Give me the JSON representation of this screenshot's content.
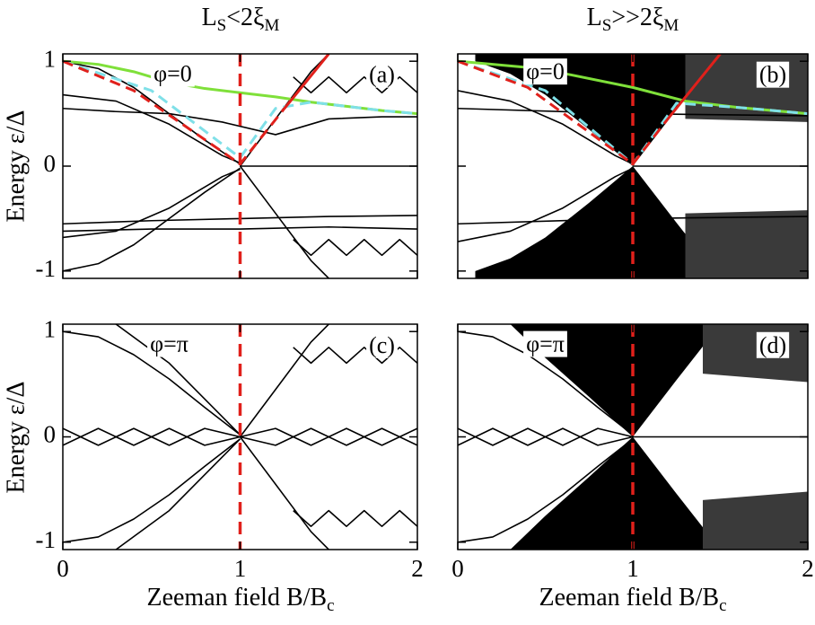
{
  "figure": {
    "column_titles": [
      [
        {
          "text": "L"
        },
        {
          "text": "S",
          "sub": true
        },
        {
          "text": "<2ξ"
        },
        {
          "text": "M",
          "sub": true
        }
      ],
      [
        {
          "text": "L"
        },
        {
          "text": "S",
          "sub": true
        },
        {
          "text": ">>2ξ"
        },
        {
          "text": "M",
          "sub": true
        }
      ]
    ],
    "ylabel": "Energy ε/Δ",
    "xlabel": [
      {
        "text": "Zeeman field B/B"
      },
      {
        "text": "c",
        "sub": true
      }
    ]
  },
  "chart_data": [
    {
      "type": "line",
      "xlim": [
        0,
        2
      ],
      "ylim": [
        -1.07,
        1.07
      ],
      "xticks": [
        0,
        1,
        2
      ],
      "yticks": [
        -1,
        0,
        1
      ],
      "xtick_labels": false,
      "ytick_labels": true,
      "annotations": [
        {
          "text": "φ=0",
          "x": 0.62,
          "y": 0.86,
          "boxed": true
        },
        {
          "text": "(a)",
          "x": 1.8,
          "y": 0.85,
          "boxed": true
        }
      ],
      "vline": {
        "x": 1,
        "color": "#e0201b"
      },
      "areas": [],
      "series": [
        {
          "color": "#000",
          "x": [
            0,
            0.2,
            0.4,
            0.6,
            0.8,
            1
          ],
          "values": [
            1.0,
            0.93,
            0.75,
            0.5,
            0.25,
            0.02
          ]
        },
        {
          "color": "#000",
          "x": [
            0,
            0.2,
            0.4,
            0.6,
            0.8,
            1
          ],
          "values": [
            -1.0,
            -0.93,
            -0.75,
            -0.5,
            -0.25,
            -0.02
          ]
        },
        {
          "color": "#000",
          "x": [
            0,
            0.3,
            0.6,
            0.9,
            1
          ],
          "values": [
            0.68,
            0.62,
            0.4,
            0.1,
            0.03
          ]
        },
        {
          "color": "#000",
          "x": [
            0,
            0.3,
            0.6,
            0.9,
            1
          ],
          "values": [
            -0.68,
            -0.62,
            -0.4,
            -0.1,
            -0.03
          ]
        },
        {
          "color": "#000",
          "x": [
            0,
            0.3,
            0.6,
            0.9,
            1.2,
            1.5,
            1.8,
            2
          ],
          "values": [
            0.55,
            0.52,
            0.5,
            0.42,
            0.3,
            0.45,
            0.47,
            0.47
          ]
        },
        {
          "color": "#000",
          "x": [
            0,
            0.5,
            1,
            1.5,
            2
          ],
          "values": [
            -0.55,
            -0.52,
            -0.5,
            -0.48,
            -0.47
          ]
        },
        {
          "color": "#000",
          "x": [
            0,
            0.5,
            1,
            1.5,
            2
          ],
          "values": [
            -0.62,
            -0.6,
            -0.6,
            -0.58,
            -0.6
          ]
        },
        {
          "color": "#000",
          "x": [
            1,
            1.2,
            1.4,
            1.5
          ],
          "values": [
            0,
            0.45,
            0.9,
            1.07
          ]
        },
        {
          "color": "#000",
          "x": [
            1,
            1.2,
            1.4,
            1.5
          ],
          "values": [
            0,
            -0.45,
            -0.9,
            -1.07
          ]
        },
        {
          "color": "#000",
          "x": [
            1.3,
            1.4,
            1.5,
            1.6,
            1.7,
            1.8,
            1.9,
            2
          ],
          "values": [
            0.85,
            0.7,
            0.85,
            0.7,
            0.85,
            0.7,
            0.85,
            0.7
          ]
        },
        {
          "color": "#000",
          "x": [
            1.3,
            1.4,
            1.5,
            1.6,
            1.7,
            1.8,
            1.9,
            2
          ],
          "values": [
            -0.7,
            -0.85,
            -0.7,
            -0.85,
            -0.7,
            -0.85,
            -0.7,
            -0.85
          ]
        },
        {
          "color": "#000",
          "x": [
            1,
            2
          ],
          "values": [
            0,
            0
          ]
        },
        {
          "color": "#7fe03a",
          "width": 3,
          "x": [
            0,
            0.2,
            0.4,
            0.6,
            0.8,
            1,
            1.2,
            1.4,
            1.6,
            1.8,
            2
          ],
          "values": [
            1,
            0.97,
            0.9,
            0.8,
            0.74,
            0.7,
            0.66,
            0.61,
            0.57,
            0.53,
            0.5
          ]
        },
        {
          "color": "#7fe0e8",
          "width": 3,
          "dash": true,
          "x": [
            0,
            0.5,
            1,
            1.2,
            1.4,
            1.6,
            1.8,
            2
          ],
          "values": [
            1,
            0.72,
            0.08,
            0.55,
            0.61,
            0.57,
            0.53,
            0.5
          ]
        },
        {
          "color": "#e0201b",
          "width": 3,
          "dash": true,
          "x": [
            0,
            0.4,
            1,
            1.25
          ],
          "values": [
            1,
            0.72,
            0.02,
            0.55
          ]
        },
        {
          "color": "#e0201b",
          "width": 3,
          "x": [
            1.25,
            1.5
          ],
          "values": [
            0.55,
            1.07
          ]
        }
      ]
    },
    {
      "type": "line",
      "xlim": [
        0,
        2
      ],
      "ylim": [
        -1.07,
        1.07
      ],
      "xticks": [
        0,
        1,
        2
      ],
      "yticks": [
        -1,
        0,
        1
      ],
      "xtick_labels": false,
      "ytick_labels": false,
      "annotations": [
        {
          "text": "φ=0",
          "x": 0.5,
          "y": 0.88,
          "boxed": true
        },
        {
          "text": "(b)",
          "x": 1.8,
          "y": 0.85,
          "boxed": true
        }
      ],
      "vline": {
        "x": 1,
        "color": "#e0201b"
      },
      "areas": [
        {
          "color": "#000",
          "x": [
            0.1,
            0.3,
            0.5,
            0.75,
            1,
            1.25,
            1.5
          ],
          "lower": [
            1.0,
            0.88,
            0.68,
            0.35,
            0,
            0.54,
            1.07
          ],
          "upper": [
            1.07,
            1.07,
            1.07,
            1.07,
            1.07,
            1.07,
            1.07
          ]
        },
        {
          "color": "#000",
          "x": [
            0.1,
            0.3,
            0.5,
            0.75,
            1,
            1.25,
            1.5
          ],
          "lower": [
            -1.07,
            -1.07,
            -1.07,
            -1.07,
            -1.07,
            -1.07,
            -1.07
          ],
          "upper": [
            -1.0,
            -0.88,
            -0.68,
            -0.35,
            0,
            -0.54,
            -1.07
          ]
        },
        {
          "color": "#3a3a3a",
          "x": [
            1.3,
            2
          ],
          "lower": [
            0.45,
            0.42
          ],
          "upper": [
            1.07,
            1.07
          ]
        },
        {
          "color": "#3a3a3a",
          "x": [
            1.3,
            2
          ],
          "lower": [
            -1.07,
            -1.07
          ],
          "upper": [
            -0.45,
            -0.42
          ]
        }
      ],
      "series": [
        {
          "color": "#000",
          "x": [
            0,
            0.3,
            0.6,
            0.9,
            1
          ],
          "values": [
            0.72,
            0.62,
            0.4,
            0.1,
            0.02
          ]
        },
        {
          "color": "#000",
          "x": [
            0,
            0.3,
            0.6,
            0.9,
            1
          ],
          "values": [
            -0.72,
            -0.62,
            -0.4,
            -0.1,
            -0.02
          ]
        },
        {
          "color": "#000",
          "x": [
            0,
            1,
            2
          ],
          "values": [
            0.55,
            0.5,
            0.48
          ]
        },
        {
          "color": "#000",
          "x": [
            0,
            1,
            2
          ],
          "values": [
            -0.55,
            -0.5,
            -0.48
          ]
        },
        {
          "color": "#000",
          "x": [
            1,
            2
          ],
          "values": [
            0,
            0
          ]
        },
        {
          "color": "#7fe03a",
          "width": 3,
          "x": [
            0,
            0.47,
            1,
            1.3,
            1.6,
            2
          ],
          "values": [
            1,
            0.93,
            0.75,
            0.62,
            0.56,
            0.5
          ]
        },
        {
          "color": "#7fe0e8",
          "width": 3,
          "dash": true,
          "x": [
            0,
            0.5,
            1,
            1.25,
            1.6,
            2
          ],
          "values": [
            1,
            0.72,
            0.02,
            0.6,
            0.56,
            0.5
          ]
        },
        {
          "color": "#e0201b",
          "width": 3,
          "dash": true,
          "x": [
            0,
            0.4,
            1,
            1.2
          ],
          "values": [
            1,
            0.75,
            0.02,
            0.45
          ]
        },
        {
          "color": "#e0201b",
          "width": 3,
          "x": [
            1.2,
            1.5
          ],
          "values": [
            0.45,
            1.07
          ]
        }
      ]
    },
    {
      "type": "line",
      "xlim": [
        0,
        2
      ],
      "ylim": [
        -1.07,
        1.07
      ],
      "xticks": [
        0,
        1,
        2
      ],
      "yticks": [
        -1,
        0,
        1
      ],
      "xtick_labels": true,
      "ytick_labels": true,
      "annotations": [
        {
          "text": "φ=π",
          "x": 0.6,
          "y": 0.86,
          "boxed": true
        },
        {
          "text": "(c)",
          "x": 1.8,
          "y": 0.85,
          "boxed": true
        }
      ],
      "vline": {
        "x": 1,
        "color": "#e0201b"
      },
      "areas": [],
      "series": [
        {
          "color": "#000",
          "x": [
            0,
            0.2,
            0.4,
            0.6,
            0.8,
            1
          ],
          "values": [
            1.0,
            0.95,
            0.78,
            0.55,
            0.28,
            0.02
          ]
        },
        {
          "color": "#000",
          "x": [
            0,
            0.2,
            0.4,
            0.6,
            0.8,
            1
          ],
          "values": [
            -1.0,
            -0.95,
            -0.78,
            -0.55,
            -0.28,
            -0.02
          ]
        },
        {
          "color": "#000",
          "x": [
            0,
            0.2,
            0.4,
            0.6,
            0.8,
            1
          ],
          "values": [
            0.08,
            -0.08,
            0.08,
            -0.08,
            0.08,
            0
          ]
        },
        {
          "color": "#000",
          "x": [
            0,
            0.2,
            0.4,
            0.6,
            0.8,
            1
          ],
          "values": [
            -0.08,
            0.08,
            -0.08,
            0.08,
            -0.08,
            0
          ]
        },
        {
          "color": "#000",
          "x": [
            1,
            1.2,
            1.4,
            1.6,
            1.8,
            2
          ],
          "values": [
            0,
            0.08,
            -0.08,
            0.08,
            -0.08,
            0.08
          ]
        },
        {
          "color": "#000",
          "x": [
            1,
            1.2,
            1.4,
            1.6,
            1.8,
            2
          ],
          "values": [
            0,
            -0.08,
            0.08,
            -0.08,
            0.08,
            -0.08
          ]
        },
        {
          "color": "#000",
          "x": [
            0.3,
            0.6,
            1
          ],
          "values": [
            1.07,
            0.7,
            0.02
          ]
        },
        {
          "color": "#000",
          "x": [
            0.3,
            0.6,
            1
          ],
          "values": [
            -1.07,
            -0.7,
            -0.02
          ]
        },
        {
          "color": "#000",
          "x": [
            1,
            1.2,
            1.4,
            1.5
          ],
          "values": [
            0,
            0.45,
            0.9,
            1.07
          ]
        },
        {
          "color": "#000",
          "x": [
            1,
            1.2,
            1.4,
            1.5
          ],
          "values": [
            0,
            -0.45,
            -0.9,
            -1.07
          ]
        },
        {
          "color": "#000",
          "x": [
            1.3,
            1.4,
            1.5,
            1.6,
            1.7,
            1.8,
            1.9,
            2
          ],
          "values": [
            0.85,
            0.7,
            0.85,
            0.7,
            0.85,
            0.7,
            0.85,
            0.7
          ]
        },
        {
          "color": "#000",
          "x": [
            1.3,
            1.4,
            1.5,
            1.6,
            1.7,
            1.8,
            1.9,
            2
          ],
          "values": [
            -0.7,
            -0.85,
            -0.7,
            -0.85,
            -0.7,
            -0.85,
            -0.7,
            -0.85
          ]
        }
      ]
    },
    {
      "type": "line",
      "xlim": [
        0,
        2
      ],
      "ylim": [
        -1.07,
        1.07
      ],
      "xticks": [
        0,
        1,
        2
      ],
      "yticks": [
        -1,
        0,
        1
      ],
      "xtick_labels": true,
      "ytick_labels": false,
      "annotations": [
        {
          "text": "φ=π",
          "x": 0.5,
          "y": 0.86,
          "boxed": true
        },
        {
          "text": "(d)",
          "x": 1.8,
          "y": 0.85,
          "boxed": true
        }
      ],
      "vline": {
        "x": 1,
        "color": "#e0201b"
      },
      "areas": [
        {
          "color": "#000",
          "x": [
            0.3,
            0.5,
            0.75,
            1,
            1.25,
            1.5
          ],
          "lower": [
            1.07,
            0.75,
            0.38,
            0,
            0.54,
            1.07
          ],
          "upper": [
            1.07,
            1.07,
            1.07,
            1.07,
            1.07,
            1.07
          ]
        },
        {
          "color": "#000",
          "x": [
            0.3,
            0.5,
            0.75,
            1,
            1.25,
            1.5
          ],
          "lower": [
            -1.07,
            -1.07,
            -1.07,
            -1.07,
            -1.07,
            -1.07
          ],
          "upper": [
            -1.07,
            -0.75,
            -0.38,
            0,
            -0.54,
            -1.07
          ]
        },
        {
          "color": "#3a3a3a",
          "x": [
            1.4,
            2
          ],
          "lower": [
            0.6,
            0.52
          ],
          "upper": [
            1.07,
            1.07
          ]
        },
        {
          "color": "#3a3a3a",
          "x": [
            1.4,
            2
          ],
          "lower": [
            -1.07,
            -1.07
          ],
          "upper": [
            -0.6,
            -0.52
          ]
        }
      ],
      "series": [
        {
          "color": "#000",
          "x": [
            0,
            0.2,
            0.4,
            0.6,
            0.8,
            1
          ],
          "values": [
            1.0,
            0.95,
            0.78,
            0.55,
            0.28,
            0.02
          ]
        },
        {
          "color": "#000",
          "x": [
            0,
            0.2,
            0.4,
            0.6,
            0.8,
            1
          ],
          "values": [
            -1.0,
            -0.95,
            -0.78,
            -0.55,
            -0.28,
            -0.02
          ]
        },
        {
          "color": "#000",
          "x": [
            0,
            0.2,
            0.4,
            0.6,
            0.8,
            1
          ],
          "values": [
            0.08,
            -0.08,
            0.08,
            -0.08,
            0.08,
            0
          ]
        },
        {
          "color": "#000",
          "x": [
            0,
            0.2,
            0.4,
            0.6,
            0.8,
            1
          ],
          "values": [
            -0.08,
            0.08,
            -0.08,
            0.08,
            -0.08,
            0
          ]
        },
        {
          "color": "#000",
          "x": [
            1,
            2
          ],
          "values": [
            0,
            0
          ]
        }
      ]
    }
  ]
}
